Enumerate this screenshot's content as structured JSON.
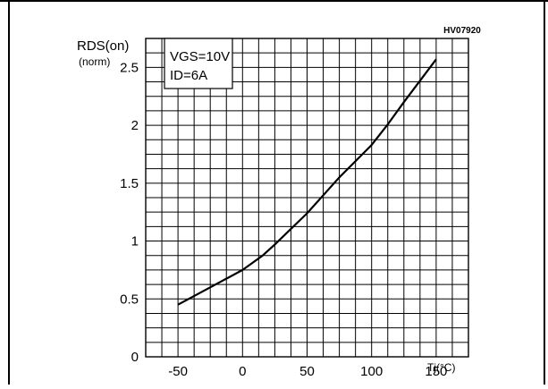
{
  "chart_data": {
    "type": "line",
    "code": "HV07920",
    "ylabel_line1": "RDS(on)",
    "ylabel_line2": "(norm)",
    "xlabel": "Tj(°C)",
    "annotation_line1": "VGS=10V",
    "annotation_line2": "ID=6A",
    "xlim": [
      -75,
      175
    ],
    "ylim": [
      0,
      2.75
    ],
    "grid": true,
    "x_ticks": [
      -50,
      0,
      50,
      100,
      150
    ],
    "y_ticks": [
      0,
      0.5,
      1,
      1.5,
      2,
      2.5
    ],
    "x_tick_labels": [
      "-50",
      "0",
      "50",
      "100",
      "150"
    ],
    "y_tick_labels": [
      "0",
      "0.5",
      "1",
      "1.5",
      "2",
      "2.5"
    ],
    "series": [
      {
        "x": [
          -50,
          -25,
          0,
          15,
          25,
          50,
          75,
          100,
          112,
          125,
          150
        ],
        "y": [
          0.45,
          0.6,
          0.75,
          0.87,
          0.97,
          1.24,
          1.55,
          1.83,
          2.0,
          2.2,
          2.57
        ]
      }
    ]
  }
}
